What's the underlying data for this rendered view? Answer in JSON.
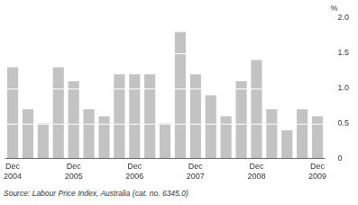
{
  "chart_data": {
    "type": "bar",
    "categories": [
      "Dec 2004",
      null,
      null,
      null,
      "Dec 2005",
      null,
      null,
      null,
      "Dec 2006",
      null,
      null,
      null,
      "Dec 2007",
      null,
      null,
      null,
      "Dec 2008",
      null,
      null,
      null,
      "Dec 2009"
    ],
    "values": [
      1.3,
      0.7,
      0.5,
      1.3,
      1.1,
      0.7,
      0.6,
      1.2,
      1.2,
      1.2,
      0.5,
      1.8,
      1.2,
      0.9,
      0.6,
      1.1,
      1.4,
      0.7,
      0.4,
      0.7,
      0.6
    ],
    "color": "#c3c3c3",
    "y_label": "%",
    "ylim": [
      0,
      2
    ],
    "yticks": [
      0,
      0.5,
      {
        "value": 1,
        "label": "1.0"
      },
      1.5,
      {
        "value": 2,
        "label": "2.0"
      }
    ],
    "grid": true,
    "source": "Source: Labour Price Index, Australia (cat. no. 6345.0)"
  }
}
